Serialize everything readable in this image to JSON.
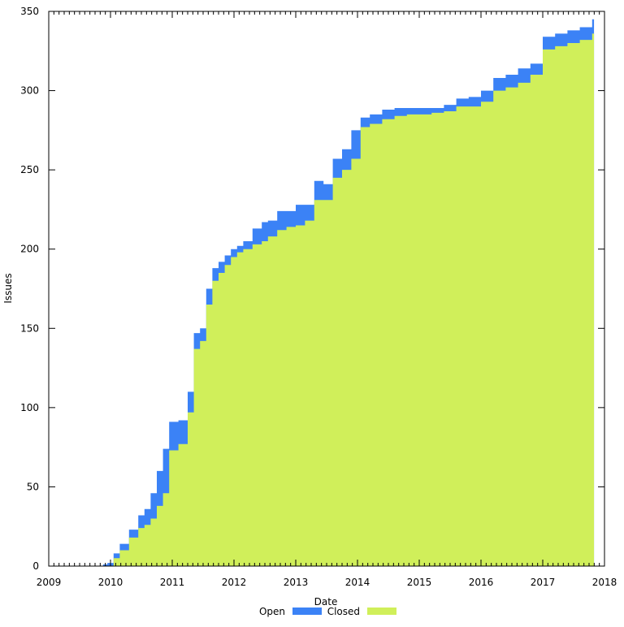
{
  "chart_data": {
    "type": "area",
    "title": "",
    "xlabel": "Date",
    "ylabel": "Issues",
    "xlim": [
      2009,
      2018
    ],
    "ylim": [
      0,
      350
    ],
    "x_ticks": [
      "2009",
      "2010",
      "2011",
      "2012",
      "2013",
      "2014",
      "2015",
      "2016",
      "2017",
      "2018"
    ],
    "y_ticks": [
      "0",
      "50",
      "100",
      "150",
      "200",
      "250",
      "300",
      "350"
    ],
    "grid": false,
    "legend_position": "bottom-center",
    "stacked": true,
    "series": [
      {
        "name": "Open",
        "color": "#3b82f6",
        "x": [
          2009.88,
          2009.95,
          2010.05,
          2010.15,
          2010.3,
          2010.45,
          2010.55,
          2010.65,
          2010.75,
          2010.85,
          2010.95,
          2011.1,
          2011.25,
          2011.35,
          2011.45,
          2011.55,
          2011.65,
          2011.75,
          2011.85,
          2011.95,
          2012.05,
          2012.15,
          2012.3,
          2012.45,
          2012.55,
          2012.7,
          2012.85,
          2013.0,
          2013.15,
          2013.3,
          2013.45,
          2013.6,
          2013.75,
          2013.9,
          2014.05,
          2014.2,
          2014.4,
          2014.6,
          2014.8,
          2015.0,
          2015.2,
          2015.4,
          2015.6,
          2015.8,
          2016.0,
          2016.2,
          2016.4,
          2016.6,
          2016.8,
          2017.0,
          2017.2,
          2017.4,
          2017.6,
          2017.8
        ],
        "values": [
          1,
          2,
          3,
          4,
          5,
          8,
          10,
          16,
          22,
          28,
          18,
          15,
          13,
          10,
          8,
          10,
          8,
          7,
          6,
          5,
          4,
          5,
          10,
          12,
          10,
          12,
          10,
          13,
          10,
          12,
          10,
          12,
          13,
          18,
          6,
          6,
          6,
          5,
          4,
          4,
          3,
          4,
          5,
          6,
          7,
          8,
          8,
          9,
          7,
          8,
          8,
          8,
          8,
          9
        ]
      },
      {
        "name": "Closed",
        "color": "#d0ef5a",
        "x": [
          2009.88,
          2009.95,
          2010.05,
          2010.15,
          2010.3,
          2010.45,
          2010.55,
          2010.65,
          2010.75,
          2010.85,
          2010.95,
          2011.1,
          2011.25,
          2011.35,
          2011.45,
          2011.55,
          2011.65,
          2011.75,
          2011.85,
          2011.95,
          2012.05,
          2012.15,
          2012.3,
          2012.45,
          2012.55,
          2012.7,
          2012.85,
          2013.0,
          2013.15,
          2013.3,
          2013.45,
          2013.6,
          2013.75,
          2013.9,
          2014.05,
          2014.2,
          2014.4,
          2014.6,
          2014.8,
          2015.0,
          2015.2,
          2015.4,
          2015.6,
          2015.8,
          2016.0,
          2016.2,
          2016.4,
          2016.6,
          2016.8,
          2017.0,
          2017.2,
          2017.4,
          2017.6,
          2017.8
        ],
        "values": [
          0,
          0,
          5,
          10,
          18,
          24,
          26,
          30,
          38,
          46,
          73,
          77,
          97,
          137,
          142,
          165,
          180,
          185,
          190,
          195,
          198,
          200,
          203,
          205,
          208,
          212,
          214,
          215,
          218,
          231,
          231,
          245,
          250,
          257,
          277,
          279,
          282,
          284,
          285,
          285,
          286,
          287,
          290,
          290,
          293,
          300,
          302,
          305,
          310,
          326,
          328,
          330,
          332,
          336
        ]
      }
    ]
  }
}
